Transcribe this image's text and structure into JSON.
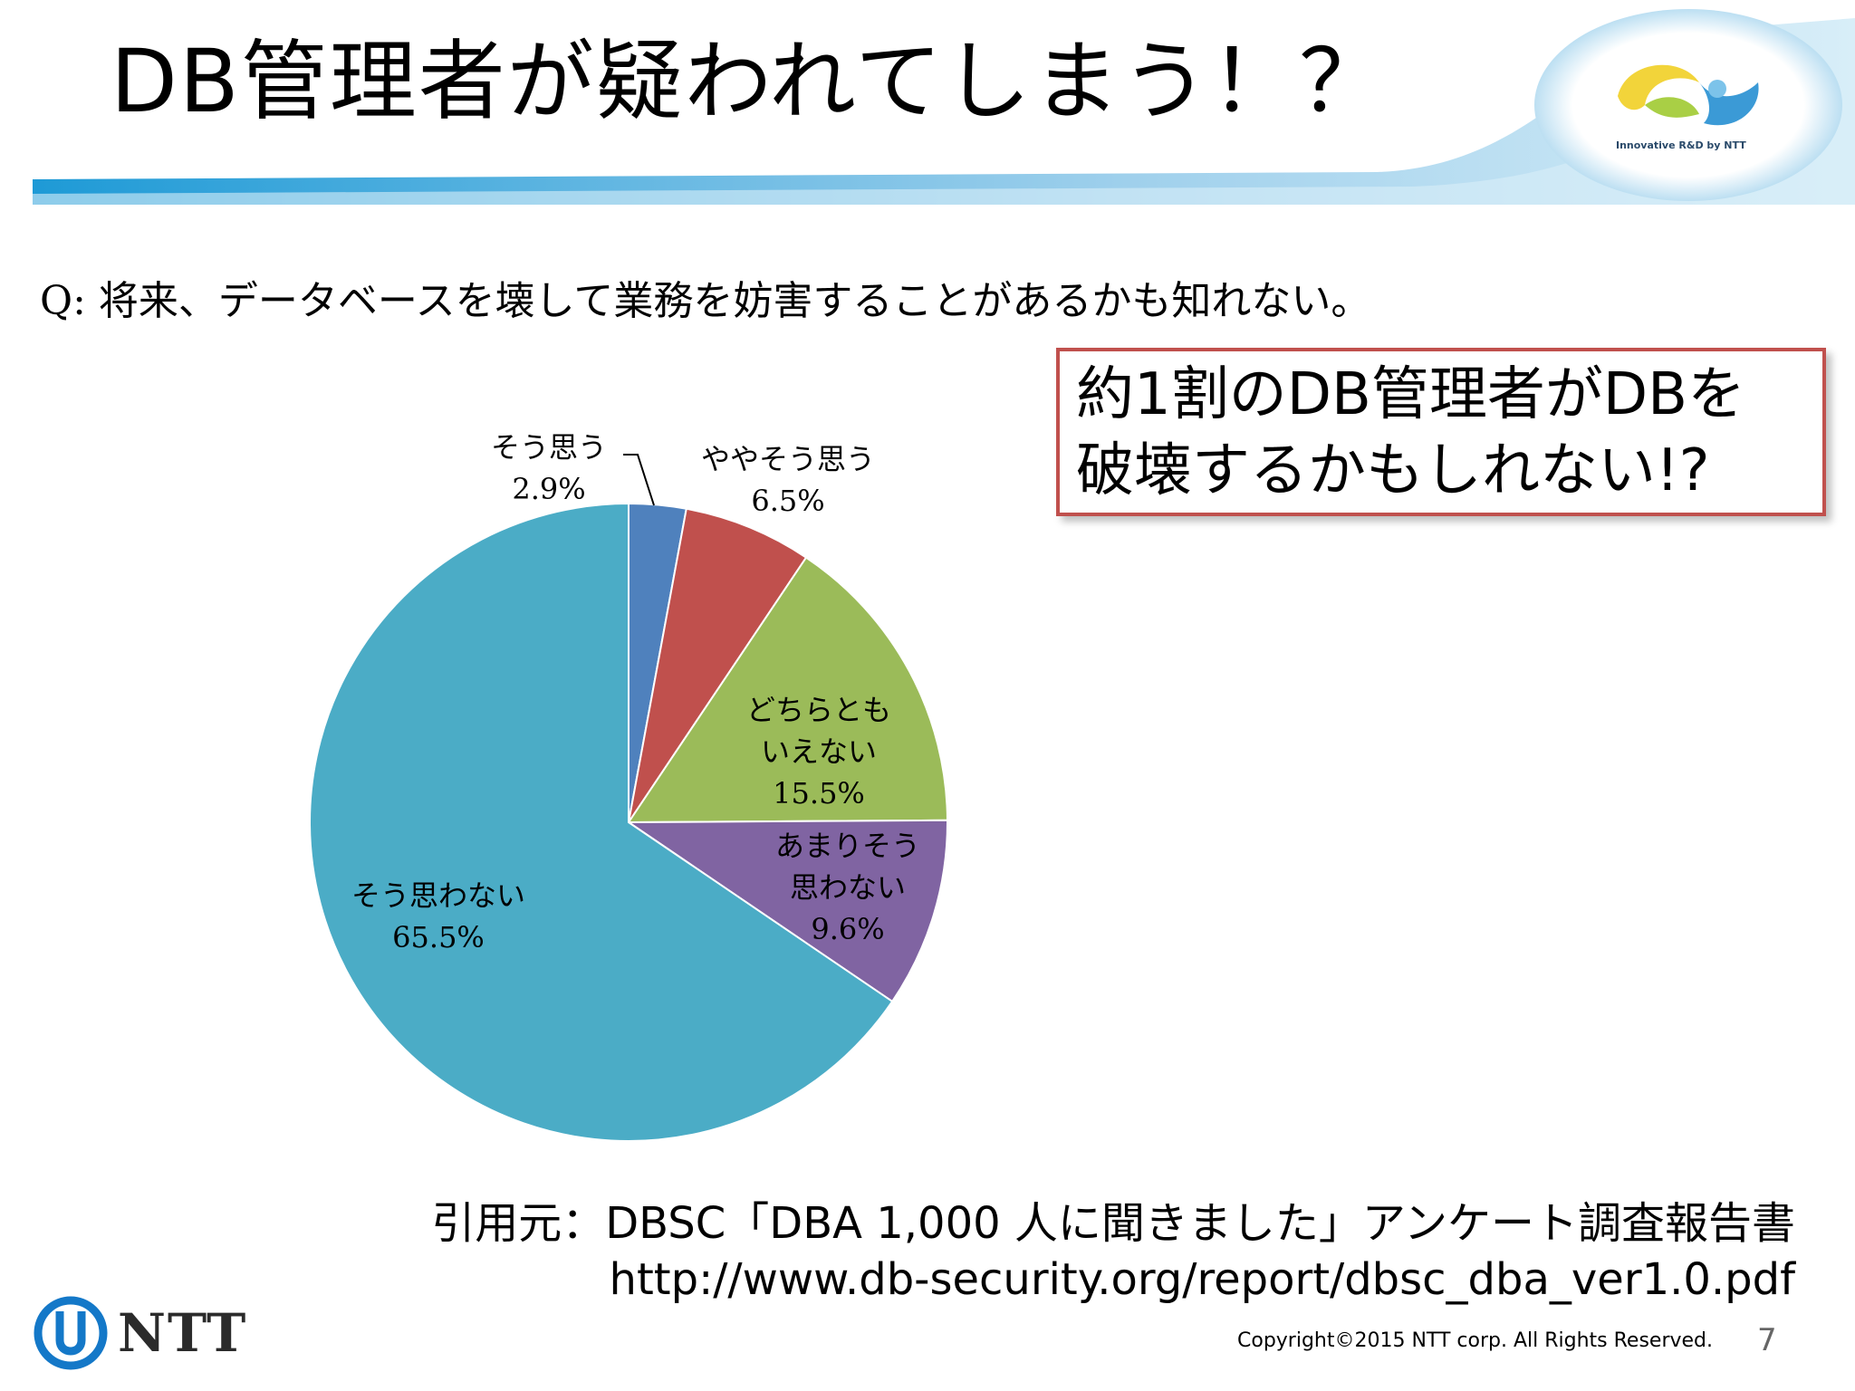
{
  "header": {
    "title": "DB管理者が疑われてしまう！？",
    "logo_tagline": "Innovative R&D by NTT"
  },
  "question": "Q: 将来、データベースを壊して業務を妨害することがあるかも知れない。",
  "callout": {
    "line1": "約1割のDB管理者がDBを",
    "line2": "破壊するかもしれない!?"
  },
  "chart_data": {
    "type": "pie",
    "slices": [
      {
        "label_line1": "そう思う",
        "label_line2": "",
        "value": 2.9,
        "value_label": "2.9%",
        "color": "#4f81bd"
      },
      {
        "label_line1": "ややそう思う",
        "label_line2": "",
        "value": 6.5,
        "value_label": "6.5%",
        "color": "#c0504d"
      },
      {
        "label_line1": "どちらとも",
        "label_line2": "いえない",
        "value": 15.5,
        "value_label": "15.5%",
        "color": "#9bbb59"
      },
      {
        "label_line1": "あまりそう",
        "label_line2": "思わない",
        "value": 9.6,
        "value_label": "9.6%",
        "color": "#8064a2"
      },
      {
        "label_line1": "そう思わない",
        "label_line2": "",
        "value": 65.5,
        "value_label": "65.5%",
        "color": "#4bacc6"
      }
    ],
    "start": "12 o'clock",
    "direction": "clockwise"
  },
  "source": {
    "line1": "引用元：DBSC「DBA 1,000 人に聞きました」アンケート調査報告書",
    "line2": "http://www.db-security.org/report/dbsc_dba_ver1.0.pdf"
  },
  "footer": {
    "brand": "NTT",
    "copyright": "Copyright©2015  NTT corp. All Rights Reserved.",
    "page_number": "7"
  }
}
